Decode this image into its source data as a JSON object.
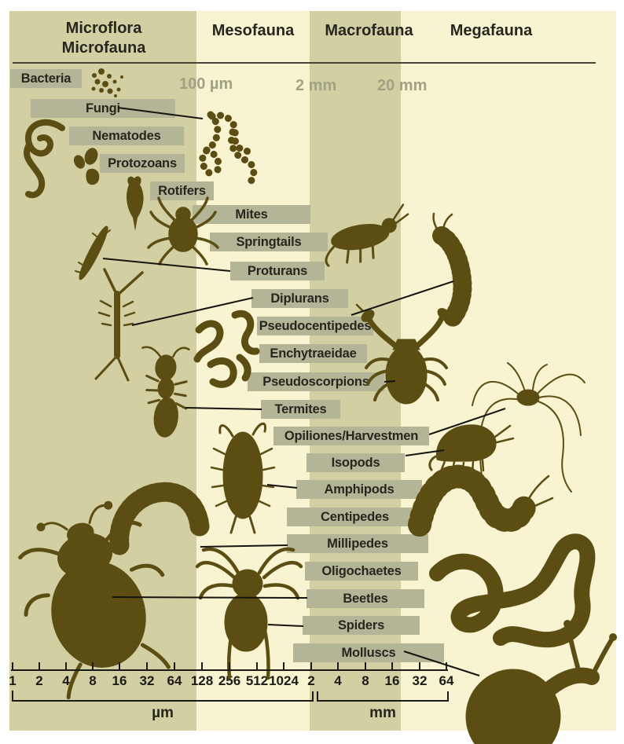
{
  "title_columns": [
    {
      "label_line1": "Microflora",
      "label_line2": "Microfauna"
    },
    {
      "label_line1": "Mesofauna",
      "label_line2": ""
    },
    {
      "label_line1": "Macrofauna",
      "label_line2": ""
    },
    {
      "label_line1": "Megafauna",
      "label_line2": ""
    }
  ],
  "size_markers": [
    {
      "label": "100 µm"
    },
    {
      "label": "2 mm"
    },
    {
      "label": "20 mm"
    }
  ],
  "organisms": [
    {
      "label": "Bacteria"
    },
    {
      "label": "Fungi"
    },
    {
      "label": "Nematodes"
    },
    {
      "label": "Protozoans"
    },
    {
      "label": "Rotifers"
    },
    {
      "label": "Mites"
    },
    {
      "label": "Springtails"
    },
    {
      "label": "Proturans"
    },
    {
      "label": "Diplurans"
    },
    {
      "label": "Pseudocentipedes"
    },
    {
      "label": "Enchytraeidae"
    },
    {
      "label": "Pseudoscorpions"
    },
    {
      "label": "Termites"
    },
    {
      "label": "Opiliones/Harvestmen"
    },
    {
      "label": "Isopods"
    },
    {
      "label": "Amphipods"
    },
    {
      "label": "Centipedes"
    },
    {
      "label": "Millipedes"
    },
    {
      "label": "Oligochaetes"
    },
    {
      "label": "Beetles"
    },
    {
      "label": "Spiders"
    },
    {
      "label": "Molluscs"
    }
  ],
  "axis": {
    "um_tick_labels": [
      "1",
      "2",
      "4",
      "8",
      "16",
      "32",
      "64",
      "128",
      "256",
      "512",
      "1024"
    ],
    "mm_tick_labels": [
      "2",
      "4",
      "8",
      "16",
      "32",
      "64"
    ],
    "um_unit": "µm",
    "mm_unit": "mm"
  },
  "colors": {
    "band_dark": "#d2cfa2",
    "band_light": "#f8f4d2",
    "bar_background": "#b4b596",
    "silhouette": "#5c4d13",
    "marker_text": "#a1a183",
    "text": "#26261f"
  }
}
